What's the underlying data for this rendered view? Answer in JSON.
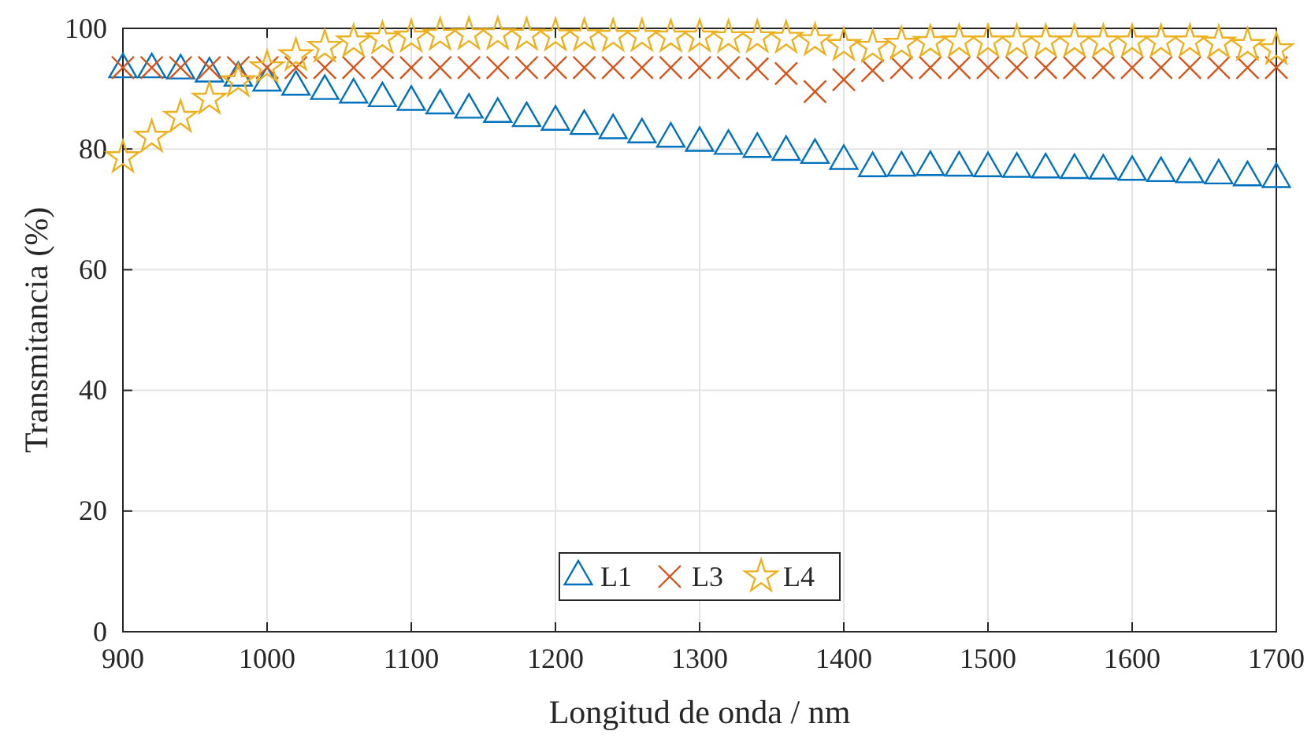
{
  "chart_data": {
    "type": "scatter",
    "xlabel": "Longitud de onda / nm",
    "ylabel": "Transmitancia (%)",
    "x": [
      900,
      920,
      940,
      960,
      980,
      1000,
      1020,
      1040,
      1060,
      1080,
      1100,
      1120,
      1140,
      1160,
      1180,
      1200,
      1220,
      1240,
      1260,
      1280,
      1300,
      1320,
      1340,
      1360,
      1380,
      1400,
      1420,
      1440,
      1460,
      1480,
      1500,
      1520,
      1540,
      1560,
      1580,
      1600,
      1620,
      1640,
      1660,
      1680,
      1700
    ],
    "series": [
      {
        "name": "L1",
        "color": "#0072bd",
        "marker": "triangle",
        "values": [
          93.2,
          93.2,
          93,
          92.5,
          91.8,
          91,
          90.3,
          89.6,
          89,
          88.4,
          87.8,
          87.2,
          86.5,
          85.8,
          85.1,
          84.5,
          83.8,
          83.1,
          82.4,
          81.7,
          81,
          80.5,
          80,
          79.5,
          79,
          78,
          76.8,
          76.9,
          77,
          76.9,
          76.8,
          76.7,
          76.6,
          76.5,
          76.4,
          76.2,
          76,
          75.8,
          75.6,
          75.3,
          75
        ]
      },
      {
        "name": "L3",
        "color": "#d95319",
        "marker": "cross",
        "values": [
          93.5,
          93.5,
          93.5,
          93.5,
          93.5,
          93.5,
          93.5,
          93.5,
          93.5,
          93.5,
          93.5,
          93.5,
          93.5,
          93.5,
          93.5,
          93.5,
          93.5,
          93.5,
          93.5,
          93.5,
          93.5,
          93.5,
          93.3,
          92.5,
          89.5,
          91.5,
          93,
          93.5,
          93.5,
          93.5,
          93.5,
          93.5,
          93.5,
          93.5,
          93.5,
          93.5,
          93.5,
          93.5,
          93.5,
          93.5,
          93.5
        ]
      },
      {
        "name": "L4",
        "color": "#edb120",
        "marker": "star",
        "values": [
          78.6,
          82,
          85.3,
          88.3,
          91.2,
          93.5,
          95.5,
          96.9,
          97.8,
          98.3,
          98.6,
          98.9,
          99,
          99,
          98.9,
          98.8,
          98.8,
          98.7,
          98.7,
          98.6,
          98.6,
          98.5,
          98.5,
          98.4,
          98,
          97.2,
          96.9,
          97.4,
          97.7,
          97.8,
          97.8,
          97.8,
          97.8,
          97.8,
          97.8,
          97.8,
          97.8,
          97.8,
          97.6,
          97.2,
          96.5
        ]
      }
    ],
    "xlim": [
      900,
      1700
    ],
    "xticks": [
      900,
      1000,
      1100,
      1200,
      1300,
      1400,
      1500,
      1600,
      1700
    ],
    "ylim": [
      0,
      100
    ],
    "yticks": [
      0,
      20,
      40,
      60,
      80,
      100
    ],
    "grid": true,
    "legend": "bottom"
  }
}
